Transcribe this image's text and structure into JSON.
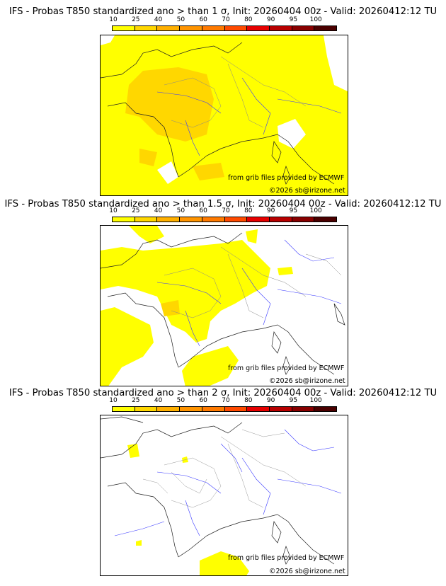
{
  "colorbar": {
    "labels": [
      "10",
      "25",
      "40",
      "50",
      "60",
      "70",
      "80",
      "90",
      "95",
      "100"
    ],
    "colors": [
      "#ffff00",
      "#ffd700",
      "#ffb000",
      "#ff9400",
      "#ff7a00",
      "#ff4a00",
      "#e60000",
      "#b80000",
      "#880000",
      "#4a0000"
    ]
  },
  "panels": [
    {
      "title": "IFS - Probas T850  standardized ano > than 1 σ, Init: 20260404 00z - Valid: 20260412:12 TU",
      "credit": "from grib files provided by ECMWF",
      "copyright": "©2026 sb@irizone.net"
    },
    {
      "title": "IFS - Probas T850  standardized ano > than 1.5 σ, Init: 20260404 00z - Valid: 20260412:12 TU",
      "credit": "from grib files provided by ECMWF",
      "copyright": "©2026 sb@irizone.net"
    },
    {
      "title": "IFS - Probas T850  standardized ano > than 2 σ, Init: 20260404 00z - Valid: 20260412:12 TU",
      "credit": "from grib files provided by ECMWF",
      "copyright": "©2026 sb@irizone.net"
    }
  ]
}
